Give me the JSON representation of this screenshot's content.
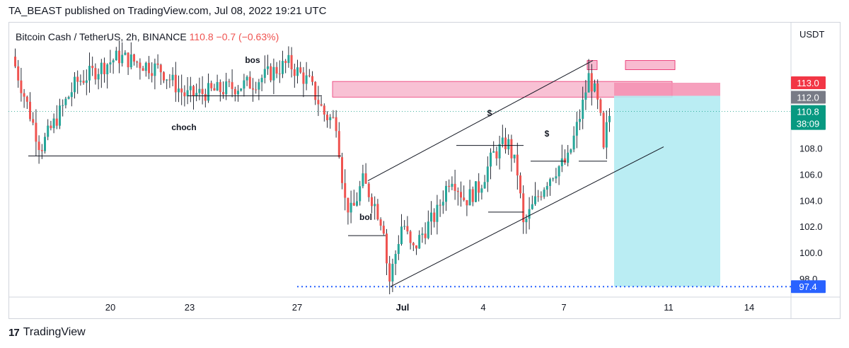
{
  "header": {
    "text": "TA_BEAST published on TradingView.com, Jul 08, 2022 19:21 UTC"
  },
  "legend": {
    "symbol": "Bitcoin Cash / TetherUS, 2h, BINANCE",
    "price": "110.8",
    "change": "−0.7 (−0.63%)"
  },
  "footer": {
    "brand": "TradingView",
    "logo": "17"
  },
  "chart_data": {
    "type": "candlestick",
    "currency": "USDT",
    "y_axis": {
      "range": [
        96.6,
        117.6
      ],
      "ticks": [
        "98.0",
        "100.0",
        "102.0",
        "104.0",
        "106.0",
        "108.0"
      ]
    },
    "x_axis": {
      "ticks": [
        "20",
        "23",
        "27",
        "Jul",
        "4",
        "7",
        "11",
        "14"
      ]
    },
    "price_labels": [
      {
        "text": "113.0",
        "value": 113.0,
        "color": "#f23645"
      },
      {
        "text": "112.0",
        "value": 112.0,
        "color": "#787b86"
      },
      {
        "text": "110.8",
        "value": 110.8,
        "color": "#089981"
      },
      {
        "text": "38:09",
        "value": 110.8,
        "color": "#089981"
      },
      {
        "text": "97.4",
        "value": 97.4,
        "color": "#2962ff"
      }
    ],
    "annotations": [
      {
        "text": "bos"
      },
      {
        "text": "choch"
      },
      {
        "text": "bol"
      },
      {
        "text": "$"
      },
      {
        "text": "$"
      }
    ],
    "trade": {
      "entry": 112.0,
      "stop": 113.0,
      "target": 97.4
    },
    "colors": {
      "up": "#26a69a",
      "down": "#ef5350",
      "wick": "#131722",
      "supply": "#f8bbd0",
      "target_zone": "#b2ebf2",
      "stop_zone": "#f48fb1"
    }
  }
}
